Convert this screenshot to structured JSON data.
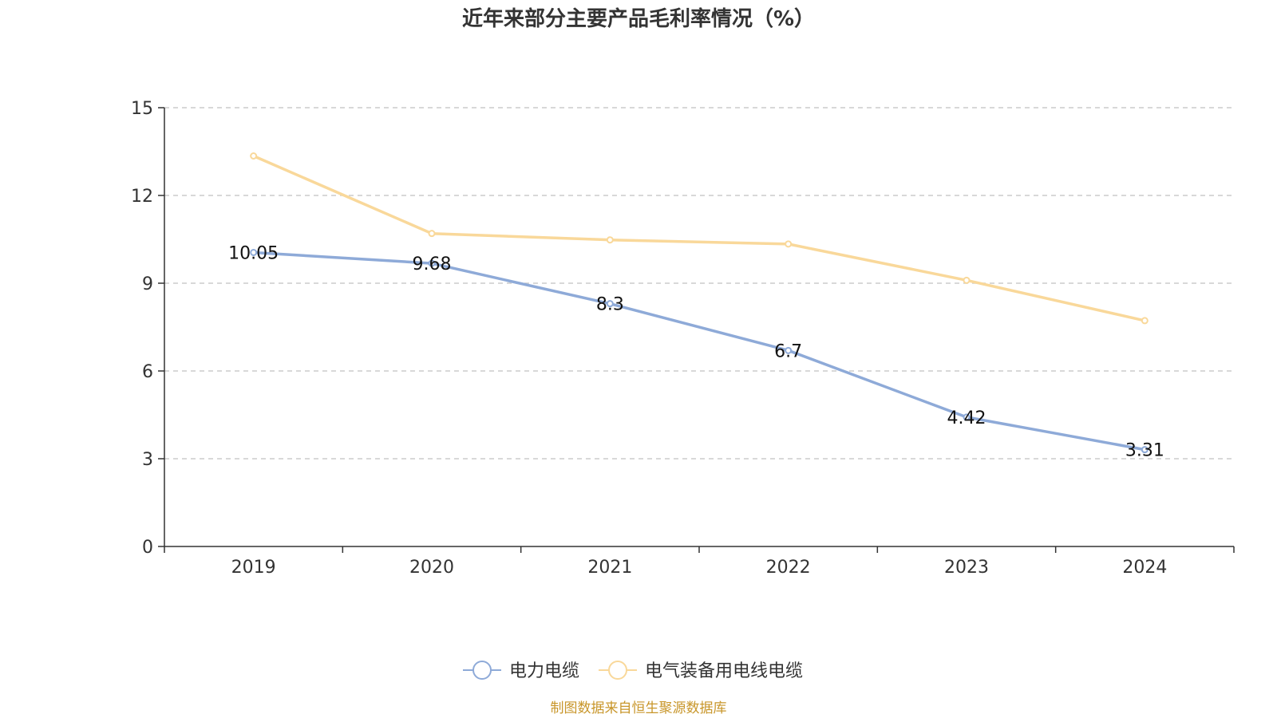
{
  "chart_data": {
    "type": "line",
    "title": "近年来部分主要产品毛利率情况（%）",
    "xlabel": "",
    "ylabel": "",
    "categories": [
      "2019",
      "2020",
      "2021",
      "2022",
      "2023",
      "2024"
    ],
    "ylim": [
      0,
      15
    ],
    "yticks": [
      "0",
      "3",
      "6",
      "9",
      "12",
      "15"
    ],
    "grid": true,
    "legend_position": "bottom",
    "series": [
      {
        "name": "电力电缆",
        "color": "#8eaad8",
        "values": [
          10.05,
          9.68,
          8.3,
          6.7,
          4.42,
          3.31
        ],
        "labels": [
          "10.05",
          "9.68",
          "8.3",
          "6.7",
          "4.42",
          "3.31"
        ]
      },
      {
        "name": "电气装备用电线电缆",
        "color": "#f9d89a",
        "values": [
          13.35,
          10.7,
          10.48,
          10.34,
          9.1,
          7.72
        ],
        "labels": []
      }
    ]
  },
  "source_text": "制图数据来自恒生聚源数据库",
  "source_color": "#c8962a"
}
